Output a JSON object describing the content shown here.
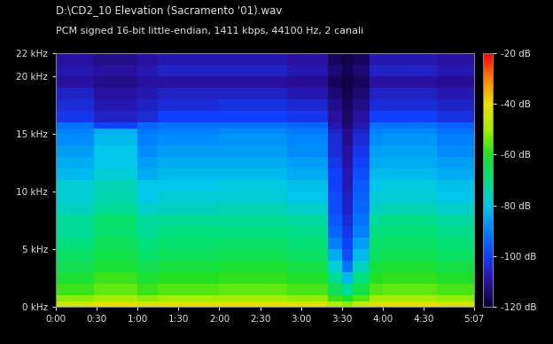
{
  "chart_data": {
    "type": "heatmap",
    "title": "D:\\CD2_10 Elevation (Sacramento '01).wav",
    "subtitle": "PCM signed 16-bit little-endian, 1411 kbps, 44100 Hz, 2 canali",
    "xlim": [
      0,
      307
    ],
    "xticks": [
      {
        "value": 0,
        "label": "0:00"
      },
      {
        "value": 30,
        "label": "0:30"
      },
      {
        "value": 60,
        "label": "1:00"
      },
      {
        "value": 90,
        "label": "1:30"
      },
      {
        "value": 120,
        "label": "2:00"
      },
      {
        "value": 150,
        "label": "2:30"
      },
      {
        "value": 180,
        "label": "3:00"
      },
      {
        "value": 210,
        "label": "3:30"
      },
      {
        "value": 240,
        "label": "4:00"
      },
      {
        "value": 270,
        "label": "4:30"
      },
      {
        "value": 307,
        "label": "5:07"
      }
    ],
    "ylim": [
      0,
      22
    ],
    "yticks": [
      {
        "value": 0,
        "label": "0 kHz"
      },
      {
        "value": 5,
        "label": "5 kHz"
      },
      {
        "value": 10,
        "label": "10 kHz"
      },
      {
        "value": 15,
        "label": "15 kHz"
      },
      {
        "value": 20,
        "label": "20 kHz"
      },
      {
        "value": 22,
        "label": "22 kHz"
      }
    ],
    "time_edges": [
      0,
      28,
      60,
      75,
      120,
      170,
      200,
      210,
      218,
      230,
      240,
      280,
      307
    ],
    "freq_edges": [
      0,
      0.5,
      1,
      2,
      3,
      4,
      5,
      6,
      7,
      8,
      9,
      10,
      11,
      12,
      13,
      14,
      15,
      15.5,
      16,
      17,
      18,
      19,
      20,
      21,
      22
    ],
    "cells": [
      [
        -45,
        -52,
        -58,
        -62,
        -65,
        -67,
        -70,
        -72,
        -72,
        -76,
        -78,
        -78,
        -82,
        -84,
        -86,
        -88,
        -90,
        -92,
        -102,
        -104,
        -106,
        -110,
        -108,
        -110
      ],
      [
        -42,
        -50,
        -55,
        -58,
        -62,
        -64,
        -66,
        -68,
        -68,
        -72,
        -74,
        -75,
        -78,
        -80,
        -80,
        -82,
        -84,
        -100,
        -106,
        -108,
        -110,
        -112,
        -110,
        -112
      ],
      [
        -44,
        -52,
        -58,
        -62,
        -65,
        -68,
        -70,
        -72,
        -73,
        -77,
        -80,
        -80,
        -84,
        -86,
        -88,
        -90,
        -92,
        -94,
        -104,
        -106,
        -108,
        -110,
        -108,
        -110
      ],
      [
        -43,
        -50,
        -56,
        -60,
        -63,
        -66,
        -68,
        -70,
        -72,
        -76,
        -78,
        -80,
        -82,
        -84,
        -86,
        -88,
        -90,
        -92,
        -100,
        -104,
        -106,
        -110,
        -106,
        -108
      ],
      [
        -42,
        -50,
        -55,
        -59,
        -62,
        -65,
        -67,
        -70,
        -72,
        -75,
        -78,
        -79,
        -82,
        -84,
        -86,
        -87,
        -89,
        -92,
        -100,
        -103,
        -106,
        -110,
        -106,
        -108
      ],
      [
        -43,
        -51,
        -57,
        -61,
        -64,
        -67,
        -69,
        -71,
        -73,
        -77,
        -80,
        -81,
        -84,
        -86,
        -88,
        -89,
        -91,
        -94,
        -102,
        -105,
        -108,
        -111,
        -108,
        -110
      ],
      [
        -48,
        -58,
        -66,
        -72,
        -78,
        -84,
        -90,
        -94,
        -96,
        -98,
        -98,
        -100,
        -100,
        -102,
        -104,
        -104,
        -106,
        -108,
        -110,
        -112,
        -114,
        -116,
        -114,
        -116
      ],
      [
        -52,
        -62,
        -72,
        -82,
        -92,
        -98,
        -100,
        -102,
        -104,
        -106,
        -106,
        -108,
        -108,
        -110,
        -110,
        -112,
        -112,
        -114,
        -115,
        -116,
        -117,
        -118,
        -117,
        -118
      ],
      [
        -46,
        -56,
        -64,
        -70,
        -76,
        -82,
        -86,
        -90,
        -92,
        -94,
        -95,
        -96,
        -98,
        -100,
        -102,
        -104,
        -106,
        -108,
        -110,
        -112,
        -114,
        -116,
        -114,
        -116
      ],
      [
        -43,
        -50,
        -56,
        -60,
        -63,
        -66,
        -68,
        -70,
        -72,
        -76,
        -78,
        -80,
        -82,
        -84,
        -86,
        -88,
        -90,
        -92,
        -100,
        -104,
        -106,
        -110,
        -106,
        -108
      ],
      [
        -42,
        -50,
        -55,
        -59,
        -62,
        -65,
        -67,
        -69,
        -71,
        -75,
        -78,
        -79,
        -82,
        -84,
        -85,
        -87,
        -89,
        -92,
        -100,
        -104,
        -106,
        -110,
        -106,
        -108
      ],
      [
        -44,
        -51,
        -57,
        -61,
        -64,
        -67,
        -69,
        -71,
        -73,
        -77,
        -80,
        -81,
        -84,
        -86,
        -88,
        -90,
        -92,
        -95,
        -103,
        -106,
        -108,
        -111,
        -108,
        -110
      ]
    ],
    "colorbar_range": [
      -120,
      -20
    ],
    "colorbar_ticks": [
      {
        "value": -20,
        "label": "-20 dB"
      },
      {
        "value": -40,
        "label": "-40 dB"
      },
      {
        "value": -60,
        "label": "-60 dB"
      },
      {
        "value": -80,
        "label": "-80 dB"
      },
      {
        "value": -100,
        "label": "-100 dB"
      },
      {
        "value": -120,
        "label": "-120 dB"
      }
    ]
  }
}
